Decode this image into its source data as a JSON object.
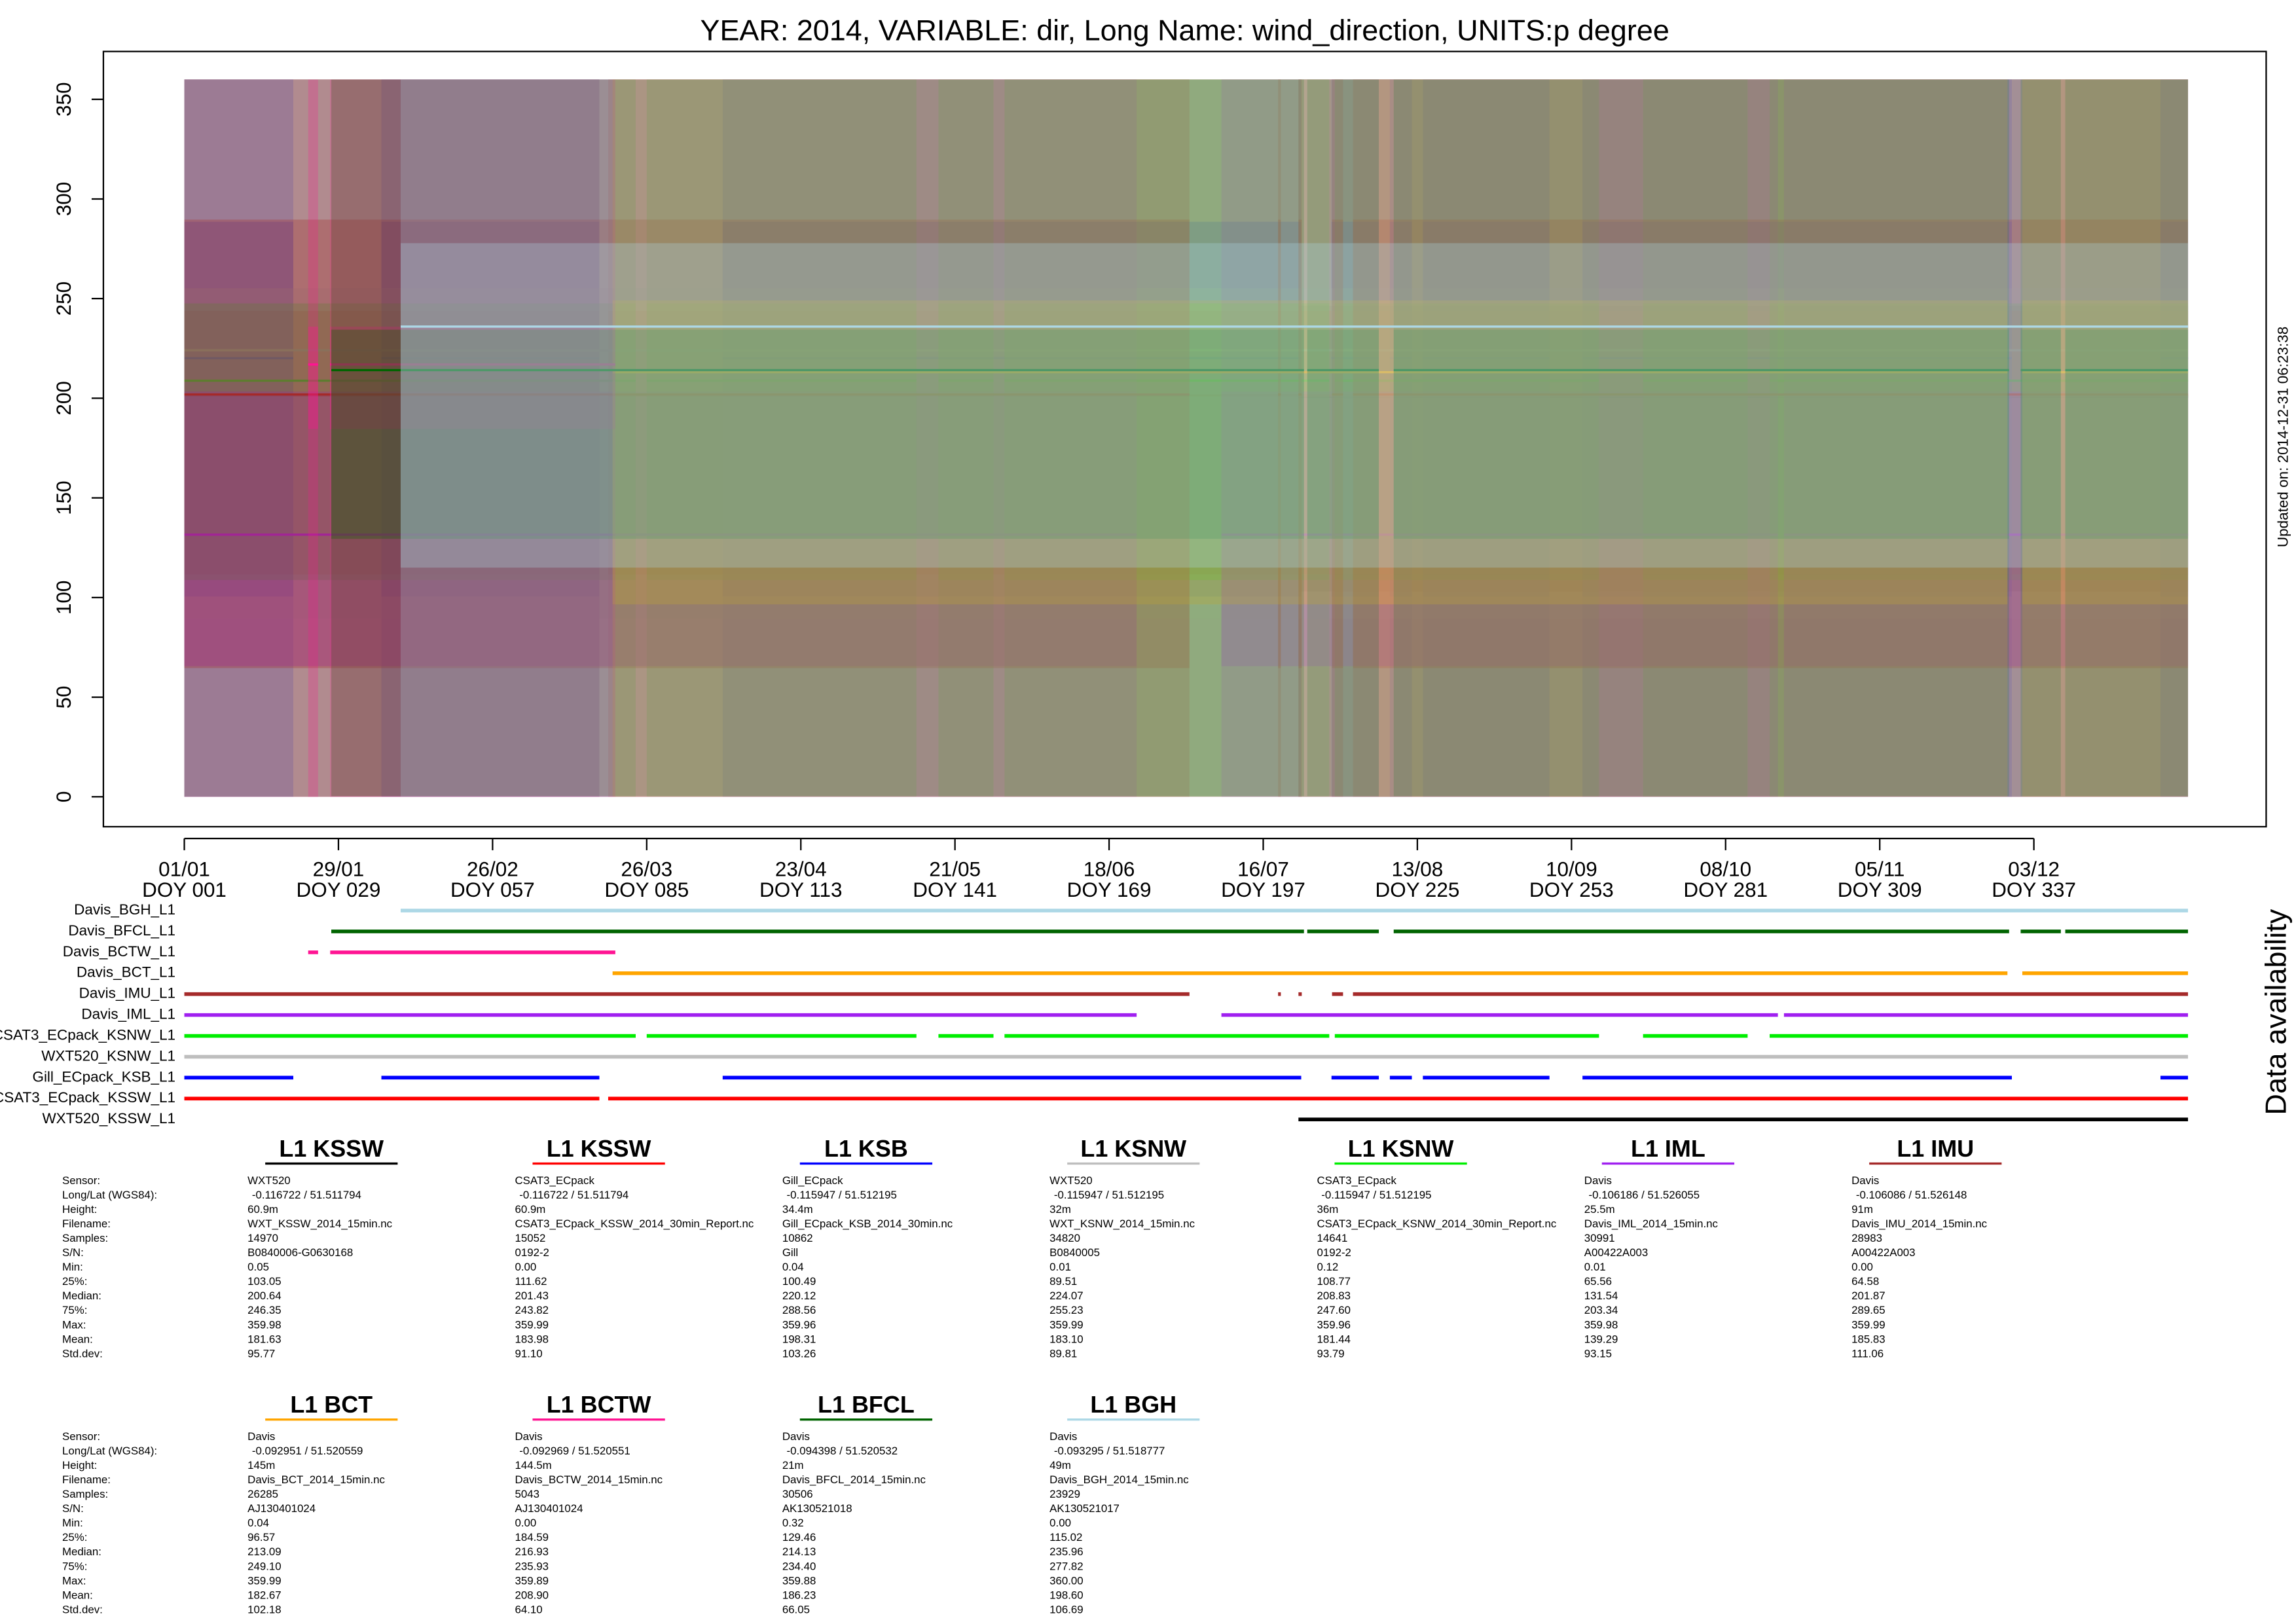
{
  "chart_data": {
    "type": "availability",
    "title": "YEAR: 2014, VARIABLE: dir, Long Name: wind_direction, UNITS:p degree",
    "updated": "Updated on: 2014-12-31 06:23:38",
    "availability_label": "Data availability",
    "ylim": [
      -15,
      374
    ],
    "yticks": [
      0,
      50,
      100,
      150,
      200,
      250,
      300,
      350
    ],
    "xlim": [
      -13.7,
      379.2
    ],
    "xticks": [
      {
        "value": 1,
        "label": "01/01"
      },
      {
        "value": 29,
        "label": "29/01"
      },
      {
        "value": 57,
        "label": "26/02"
      },
      {
        "value": 85,
        "label": "26/03"
      },
      {
        "value": 113,
        "label": "23/04"
      },
      {
        "value": 141,
        "label": "21/05"
      },
      {
        "value": 169,
        "label": "18/06"
      },
      {
        "value": 197,
        "label": "16/07"
      },
      {
        "value": 225,
        "label": "13/08"
      },
      {
        "value": 253,
        "label": "10/09"
      },
      {
        "value": 281,
        "label": "08/10"
      },
      {
        "value": 309,
        "label": "05/11"
      },
      {
        "value": 337,
        "label": "03/12"
      }
    ],
    "xticks_doy": [
      "DOY 001",
      "DOY 029",
      "DOY 057",
      "DOY 085",
      "DOY 113",
      "DOY 141",
      "DOY 169",
      "DOY 197",
      "DOY 225",
      "DOY 253",
      "DOY 281",
      "DOY 309",
      "DOY 337"
    ],
    "stat_labels": [
      "Sensor:",
      "Long/Lat (WGS84):",
      "Height:",
      "Filename:",
      "Samples:",
      "S/N:",
      "Min:",
      "25%:",
      "Median:",
      "75%:",
      "Max:",
      "Mean:",
      "Std.dev:"
    ],
    "series": [
      {
        "name": "WXT520_KSSW_L1",
        "title": "L1 KSSW",
        "color": "#000000",
        "segments": [
          [
            203.4,
            365
          ]
        ],
        "table": [
          "WXT520",
          "-0.116722 / 51.511794",
          "60.9m",
          "WXT_KSSW_2014_15min.nc",
          "14970",
          "B0840006-G0630168",
          "0.05",
          "103.05",
          "200.64",
          "246.35",
          "359.98",
          "181.63",
          "95.77"
        ]
      },
      {
        "name": "CSAT3_ECpack_KSSW_L1",
        "title": "L1 KSSW",
        "color": "#ff0000",
        "segments": [
          [
            1,
            76.4
          ],
          [
            78,
            365
          ]
        ],
        "table": [
          "CSAT3_ECpack",
          "-0.116722 / 51.511794",
          "60.9m",
          "CSAT3_ECpack_KSSW_2014_30min_Report.nc",
          "15052",
          "0192-2",
          "0.00",
          "111.62",
          "201.43",
          "243.82",
          "359.99",
          "183.98",
          "91.10"
        ]
      },
      {
        "name": "Gill_ECpack_KSB_L1",
        "title": "L1 KSB",
        "color": "#0000ff",
        "segments": [
          [
            1,
            20.8
          ],
          [
            36.8,
            76.4
          ],
          [
            98.8,
            203.9
          ],
          [
            209.4,
            218
          ],
          [
            220,
            224
          ],
          [
            226,
            249
          ],
          [
            255,
            333
          ],
          [
            360,
            365
          ]
        ],
        "table": [
          "Gill_ECpack",
          "-0.115947 / 51.512195",
          "34.4m",
          "Gill_ECpack_KSB_2014_30min.nc",
          "10862",
          "Gill",
          "0.04",
          "100.49",
          "220.12",
          "288.56",
          "359.96",
          "198.31",
          "103.26"
        ]
      },
      {
        "name": "WXT520_KSNW_L1",
        "title": "L1 KSNW",
        "color": "#bebebe",
        "segments": [
          [
            1,
            365
          ]
        ],
        "table": [
          "WXT520",
          "-0.115947 / 51.512195",
          "32m",
          "WXT_KSNW_2014_15min.nc",
          "34820",
          "B0840005",
          "0.01",
          "89.51",
          "224.07",
          "255.23",
          "359.99",
          "183.10",
          "89.81"
        ]
      },
      {
        "name": "CSAT3_ECpack_KSNW_L1",
        "title": "L1 KSNW",
        "color": "#00ee00",
        "segments": [
          [
            1,
            83
          ],
          [
            85,
            134
          ],
          [
            138,
            148
          ],
          [
            150,
            209
          ],
          [
            210,
            258
          ],
          [
            266,
            285
          ],
          [
            289,
            365
          ]
        ],
        "table": [
          "CSAT3_ECpack",
          "-0.115947 / 51.512195",
          "36m",
          "CSAT3_ECpack_KSNW_2014_30min_Report.nc",
          "14641",
          "0192-2",
          "0.12",
          "108.77",
          "208.83",
          "247.60",
          "359.96",
          "181.44",
          "93.79"
        ]
      },
      {
        "name": "Davis_IML_L1",
        "title": "L1 IML",
        "color": "#a020f0",
        "segments": [
          [
            1,
            174
          ],
          [
            189.4,
            290.5
          ],
          [
            291.6,
            365
          ]
        ],
        "table": [
          "Davis",
          "-0.106186 / 51.526055",
          "25.5m",
          "Davis_IML_2014_15min.nc",
          "30991",
          "A00422A003",
          "0.01",
          "65.56",
          "131.54",
          "203.34",
          "359.98",
          "139.29",
          "93.15"
        ]
      },
      {
        "name": "Davis_IMU_L1",
        "title": "L1 IMU",
        "color": "#a52a2a",
        "segments": [
          [
            1,
            183.6
          ],
          [
            199.7,
            200.2
          ],
          [
            203.4,
            204
          ],
          [
            209.5,
            211.5
          ],
          [
            213.3,
            365
          ]
        ],
        "table": [
          "Davis",
          "-0.106086 / 51.526148",
          "91m",
          "Davis_IMU_2014_15min.nc",
          "28983",
          "A00422A003",
          "0.00",
          "64.58",
          "201.87",
          "289.65",
          "359.99",
          "185.83",
          "111.06"
        ]
      },
      {
        "name": "Davis_BCT_L1",
        "title": "L1 BCT",
        "color": "#ffa500",
        "segments": [
          [
            78.8,
            332.2
          ],
          [
            334.9,
            365
          ]
        ],
        "table": [
          "Davis",
          "-0.092951 / 51.520559",
          "145m",
          "Davis_BCT_2014_15min.nc",
          "26285",
          "AJ130401024",
          "0.04",
          "96.57",
          "213.09",
          "249.10",
          "359.99",
          "182.67",
          "102.18"
        ]
      },
      {
        "name": "Davis_BCTW_L1",
        "title": "L1 BCTW",
        "color": "#ff1493",
        "segments": [
          [
            23.5,
            25.3
          ],
          [
            27.5,
            79.3
          ]
        ],
        "table": [
          "Davis",
          "-0.092969 / 51.520551",
          "144.5m",
          "Davis_BCTW_2014_15min.nc",
          "5043",
          "AJ130401024",
          "0.00",
          "184.59",
          "216.93",
          "235.93",
          "359.89",
          "208.90",
          "64.10"
        ]
      },
      {
        "name": "Davis_BFCL_L1",
        "title": "L1 BFCL",
        "color": "#006400",
        "segments": [
          [
            27.7,
            204.4
          ],
          [
            205,
            218
          ],
          [
            220.7,
            332.5
          ],
          [
            334.6,
            341.9
          ],
          [
            342.7,
            365
          ]
        ],
        "table": [
          "Davis",
          "-0.094398 / 51.520532",
          "21m",
          "Davis_BFCL_2014_15min.nc",
          "30506",
          "AK130521018",
          "0.32",
          "129.46",
          "214.13",
          "234.40",
          "359.88",
          "186.23",
          "66.05"
        ]
      },
      {
        "name": "Davis_BGH_L1",
        "title": "L1 BGH",
        "color": "#add8e6",
        "segments": [
          [
            40.3,
            365
          ]
        ],
        "table": [
          "Davis",
          "-0.093295 / 51.518777",
          "49m",
          "Davis_BGH_2014_15min.nc",
          "23929",
          "AK130521017",
          "0.00",
          "115.02",
          "235.96",
          "277.82",
          "360.00",
          "198.60",
          "106.69"
        ]
      }
    ]
  }
}
